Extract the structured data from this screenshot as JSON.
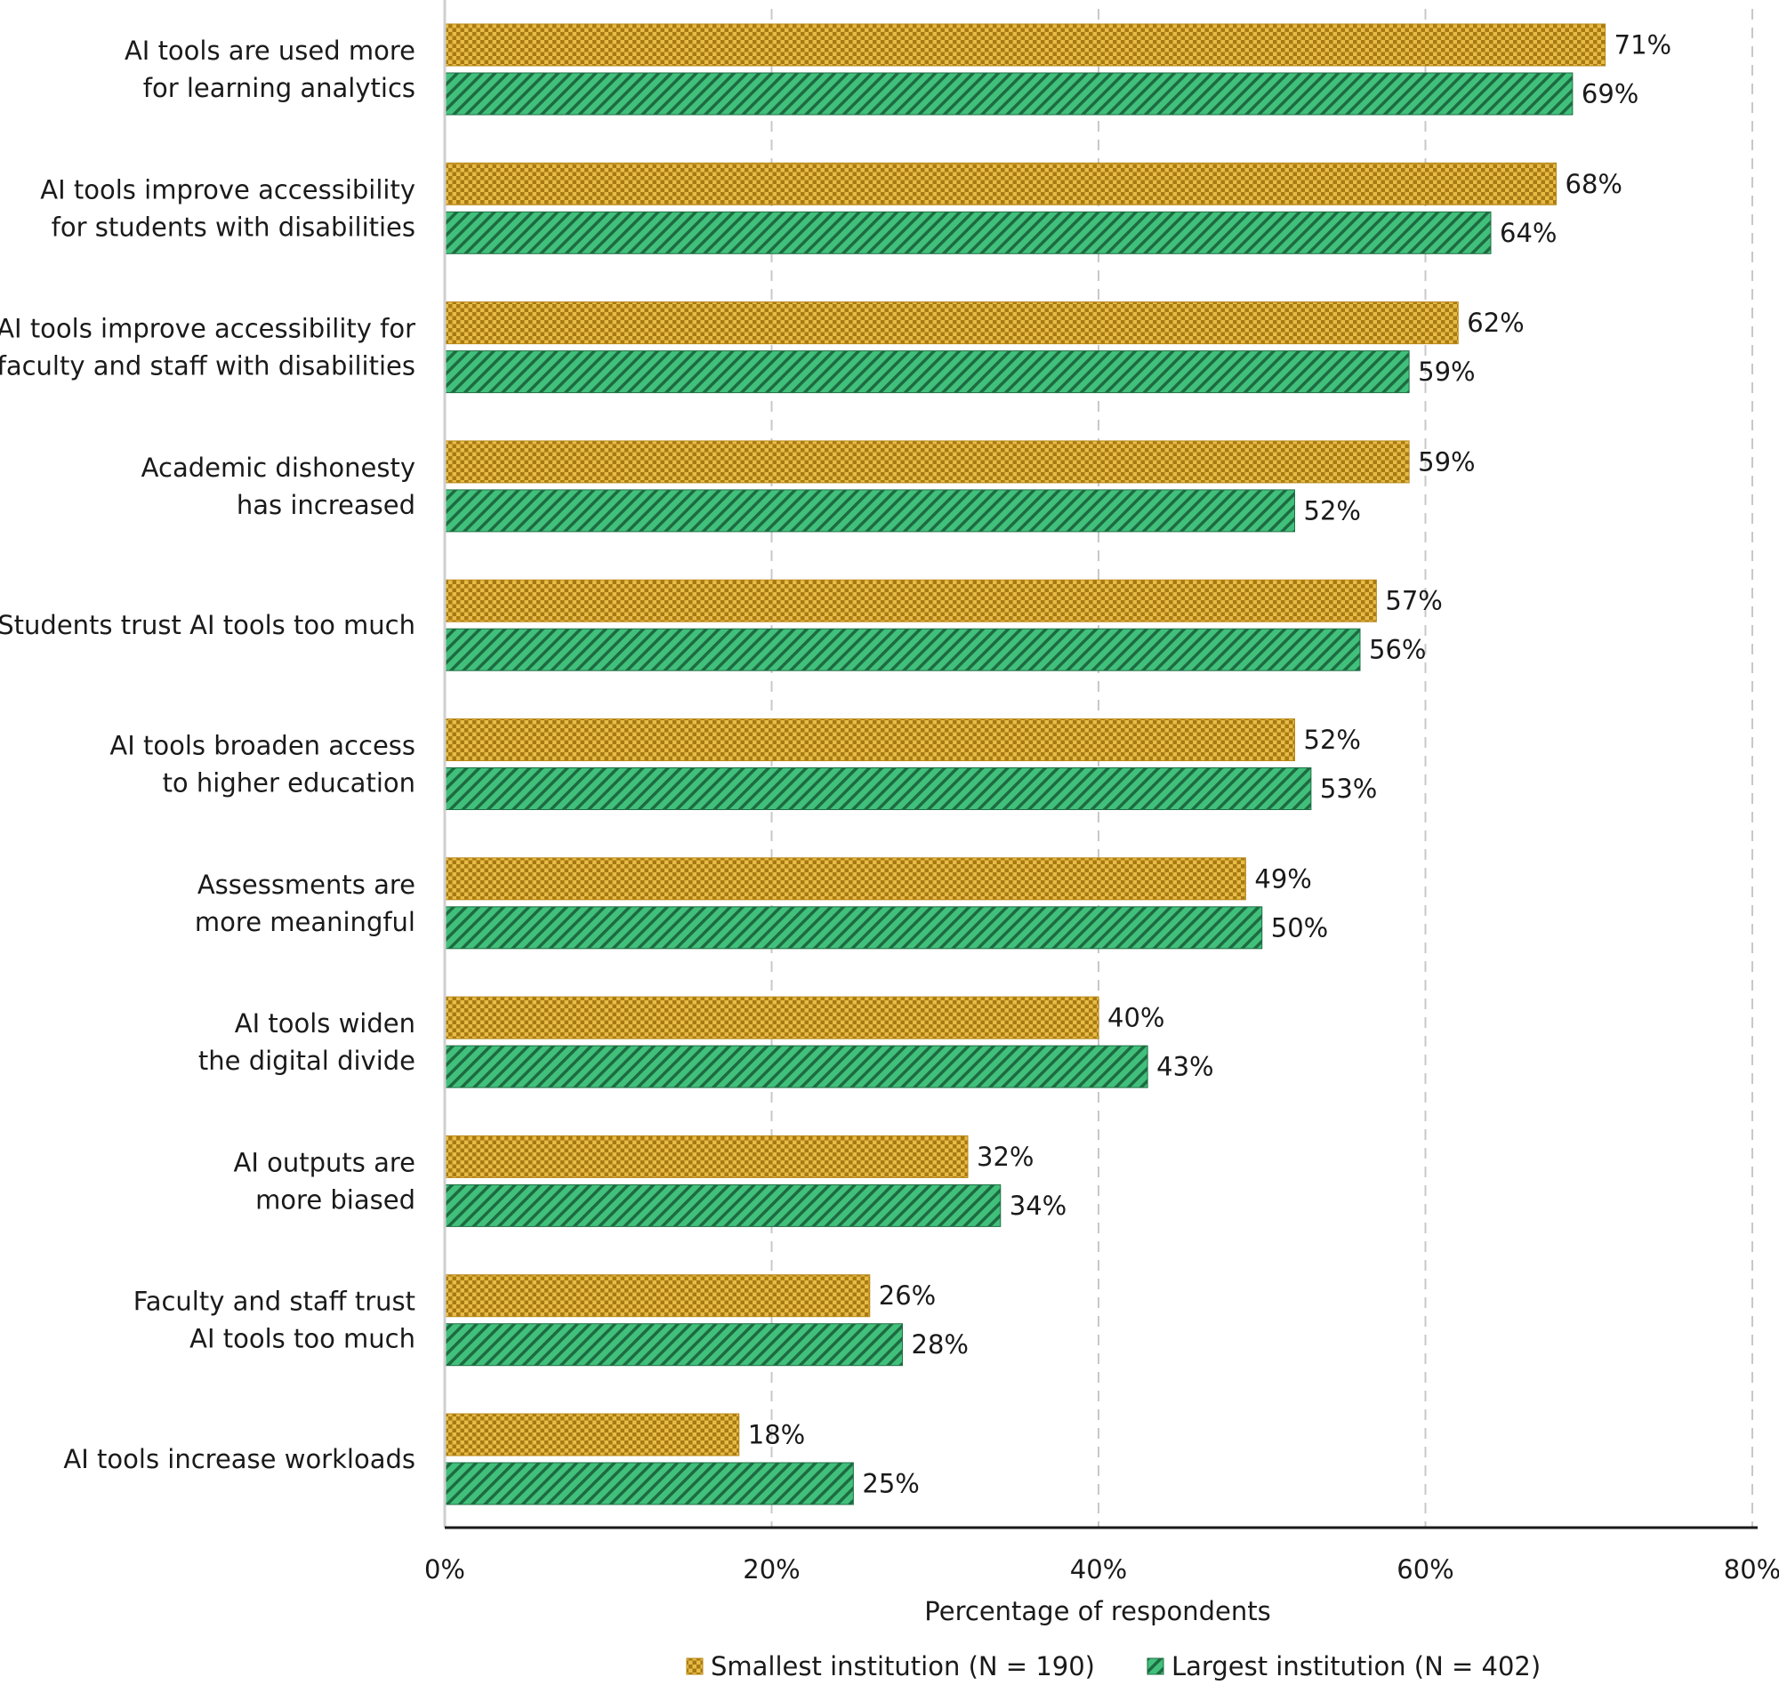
{
  "chart_data": {
    "type": "bar",
    "orientation": "horizontal",
    "title": "",
    "xlabel": "Percentage of respondents",
    "ylabel": "",
    "xlim": [
      0,
      80
    ],
    "x_ticks": [
      "0%",
      "20%",
      "40%",
      "60%",
      "80%"
    ],
    "grid": "vertical dashed",
    "legend_position": "bottom",
    "categories": [
      [
        "AI tools are used more",
        "for learning analytics"
      ],
      [
        "AI tools improve accessibility",
        "for students with disabilities"
      ],
      [
        "AI tools improve accessibility for",
        "faculty and staff with disabilities"
      ],
      [
        "Academic dishonesty",
        "has increased"
      ],
      [
        "Students trust AI tools too much"
      ],
      [
        "AI tools broaden access",
        "to higher education"
      ],
      [
        "Assessments are",
        "more meaningful"
      ],
      [
        "AI tools widen",
        "the digital divide"
      ],
      [
        "AI outputs are",
        "more biased"
      ],
      [
        "Faculty and staff trust",
        "AI tools too much"
      ],
      [
        "AI tools increase workloads"
      ]
    ],
    "series": [
      {
        "name": "Smallest institution (N = 190)",
        "color": "#d9a730",
        "pattern": "checker",
        "values": [
          71,
          68,
          62,
          59,
          57,
          52,
          49,
          40,
          32,
          26,
          18
        ]
      },
      {
        "name": "Largest institution (N = 402)",
        "color": "#3cba74",
        "pattern": "diagonal-stripes",
        "values": [
          69,
          64,
          59,
          52,
          56,
          53,
          50,
          43,
          34,
          28,
          25
        ]
      }
    ],
    "value_suffix": "%"
  }
}
